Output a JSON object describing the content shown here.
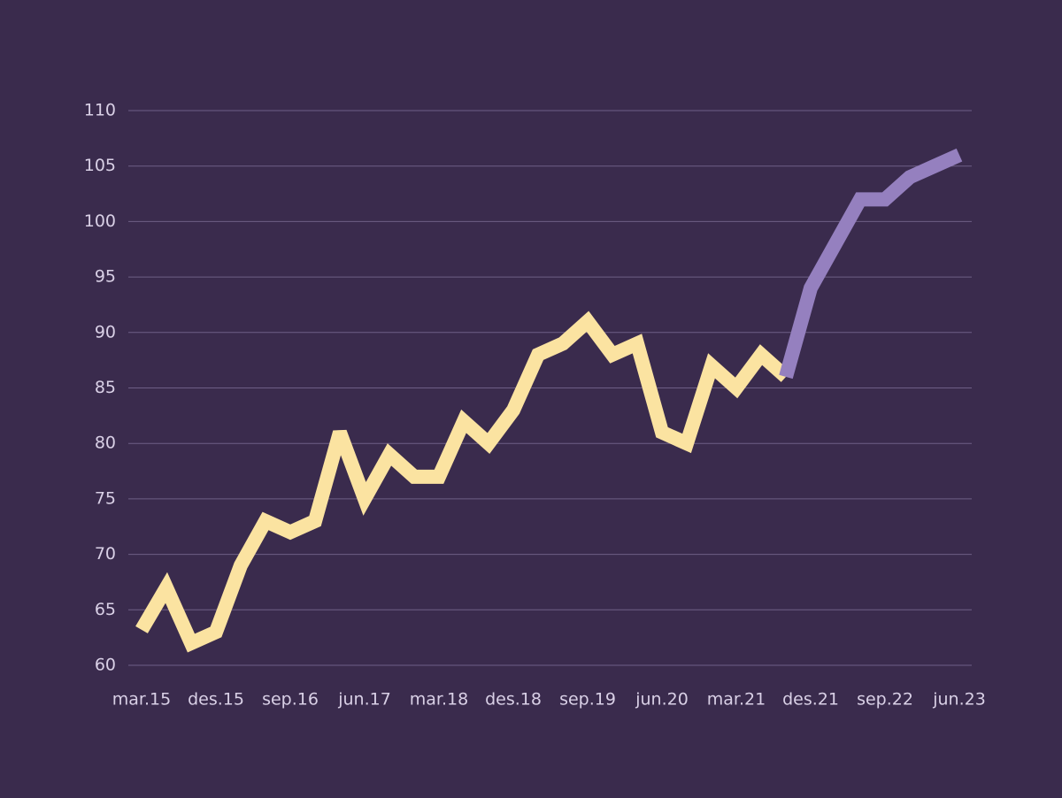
{
  "chart_data": {
    "type": "line",
    "categories": [
      "mar.15",
      null,
      null,
      "des.15",
      null,
      null,
      "sep.16",
      null,
      null,
      "jun.17",
      null,
      null,
      "mar.18",
      null,
      null,
      "des.18",
      null,
      null,
      "sep.19",
      null,
      null,
      "jun.20",
      null,
      null,
      "mar.21",
      null,
      null,
      "des.21",
      null,
      null,
      "sep.22",
      null,
      null,
      "jun.23"
    ],
    "series": [
      {
        "color": "#fbe3a1",
        "values": [
          63.2,
          67,
          62,
          63,
          69,
          73,
          72,
          73,
          81,
          75,
          79,
          77,
          77,
          82,
          80,
          83,
          88,
          89,
          91,
          88,
          89,
          81,
          80,
          87,
          85,
          88,
          86,
          null,
          null,
          null,
          null,
          null,
          null,
          null
        ]
      },
      {
        "color": "#9580bf",
        "values": [
          null,
          null,
          null,
          null,
          null,
          null,
          null,
          null,
          null,
          null,
          null,
          null,
          null,
          null,
          null,
          null,
          null,
          null,
          null,
          null,
          null,
          null,
          null,
          null,
          null,
          null,
          86,
          94,
          98,
          102,
          102,
          104,
          105,
          106
        ]
      }
    ],
    "ylim": [
      60,
      110
    ],
    "yticks": [
      60,
      65,
      70,
      75,
      80,
      85,
      90,
      95,
      100,
      105,
      110
    ],
    "grid": true
  }
}
